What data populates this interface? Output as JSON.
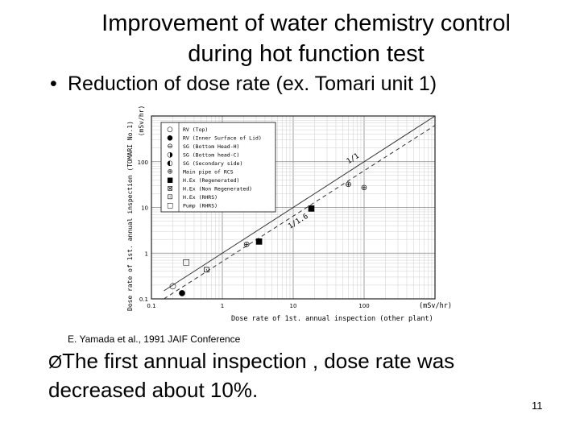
{
  "slide": {
    "title_line1": "Improvement of water chemistry control",
    "title_line2": "during hot function test",
    "bullet_marker": "•",
    "bullet_text": "Reduction of dose rate (ex. Tomari unit 1)",
    "caption": "E. Yamada et al., 1991 JAIF Conference",
    "conclusion_arrow": "Ø",
    "conclusion_line1": "The first annual inspection , dose rate was",
    "conclusion_line2": "decreased about 10%.",
    "page_number": "11"
  },
  "chart_data": {
    "type": "scatter",
    "scale": "log-log",
    "xlabel": "Dose rate of 1st. annual inspection (other plant)",
    "xunit": "(mSv/hr)",
    "ylabel": "Dose rate of 1st. annual inspection (TOMARI No.1)",
    "yunit": "(mSv/hr)",
    "xlim": [
      0.1,
      1000
    ],
    "ylim": [
      0.1,
      1000
    ],
    "xticks": [
      "0.1",
      "1",
      "10",
      "100"
    ],
    "yticks": [
      "0.1",
      "1",
      "10",
      "100"
    ],
    "grid": true,
    "legend_position": "top-left",
    "line_labels": [
      "1/1",
      "1/1.6"
    ],
    "legend": [
      {
        "symbol": "○",
        "label": "RV (Top)"
      },
      {
        "symbol": "●",
        "label": "RV (Inner Surface of Lid)"
      },
      {
        "symbol": "⊖",
        "label": "SG (Bottom Head-H)"
      },
      {
        "symbol": "◑",
        "label": "SG (Bottom head-C)"
      },
      {
        "symbol": "◐",
        "label": "SG (Secondary side)"
      },
      {
        "symbol": "⊕",
        "label": "Main pipe of RCS"
      },
      {
        "symbol": "■",
        "label": "H.Ex (Regenerated)"
      },
      {
        "symbol": "⊠",
        "label": "H.Ex (Non Regenerated)"
      },
      {
        "symbol": "⊡",
        "label": "H.Ex (RHRS)"
      },
      {
        "symbol": "□",
        "label": "Pump (RHRS)"
      }
    ],
    "points": [
      {
        "x": 0.2,
        "y": 0.2,
        "symbol": "○"
      },
      {
        "x": 0.27,
        "y": 0.14,
        "symbol": "●"
      },
      {
        "x": 0.6,
        "y": 0.45,
        "symbol": "⊡"
      },
      {
        "x": 0.31,
        "y": 0.66,
        "symbol": "□"
      },
      {
        "x": 2.2,
        "y": 1.6,
        "symbol": "⊕"
      },
      {
        "x": 3.3,
        "y": 1.9,
        "symbol": "■"
      },
      {
        "x": 18,
        "y": 10,
        "symbol": "■"
      },
      {
        "x": 60,
        "y": 33,
        "symbol": "⊕"
      },
      {
        "x": 100,
        "y": 28,
        "symbol": "⊕"
      }
    ]
  }
}
